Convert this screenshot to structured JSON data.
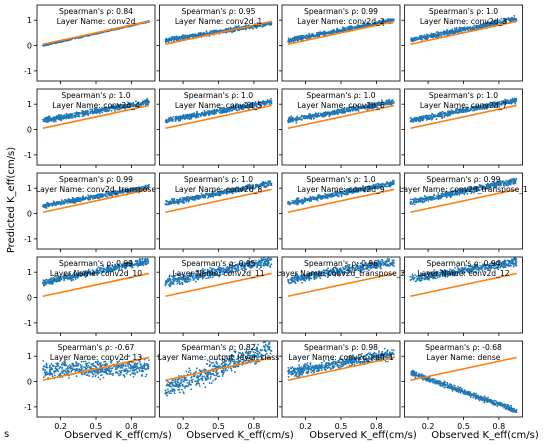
{
  "figure": {
    "ylabel": "Predicted K_eff(cm/s)",
    "xlabel": "Observed K_eff(cm/s)",
    "corner_label": "s",
    "colors": {
      "scatter": "#1f77b4",
      "identity": "#ff7f0e",
      "axes": "#000000"
    }
  },
  "chart_data": [
    {
      "type": "scatter",
      "title": [
        "Spearman's ρ: 0.84",
        "Layer Name: conv2d"
      ],
      "xlim": [
        0,
        1
      ],
      "ylim": [
        -1.4,
        1.6
      ],
      "x_ticks": [
        0.2,
        0.5,
        0.8
      ],
      "y_ticks": [
        -1,
        0,
        1
      ],
      "trend": {
        "x": [
          0.05,
          0.95
        ],
        "y": [
          0.0,
          0.95
        ]
      },
      "spread": 0.02,
      "identity_line": true
    },
    {
      "type": "scatter",
      "title": [
        "Spearman's ρ: 0.95",
        "Layer Name: conv2d_1"
      ],
      "xlim": [
        0,
        1
      ],
      "ylim": [
        -1.4,
        1.6
      ],
      "x_ticks": [
        0.2,
        0.5,
        0.8
      ],
      "y_ticks": [
        -1,
        0,
        1
      ],
      "trend": {
        "x": [
          0.05,
          0.95
        ],
        "y": [
          0.2,
          0.88
        ]
      },
      "spread": 0.07,
      "identity_line": true
    },
    {
      "type": "scatter",
      "title": [
        "Spearman's ρ: 0.99",
        "Layer Name: conv2d_2"
      ],
      "xlim": [
        0,
        1
      ],
      "ylim": [
        -1.4,
        1.6
      ],
      "x_ticks": [
        0.2,
        0.5,
        0.8
      ],
      "y_ticks": [
        -1,
        0,
        1
      ],
      "trend": {
        "x": [
          0.05,
          0.95
        ],
        "y": [
          0.2,
          1.0
        ]
      },
      "spread": 0.07,
      "identity_line": true
    },
    {
      "type": "scatter",
      "title": [
        "Spearman's ρ: 1.0",
        "Layer Name: conv2d_3"
      ],
      "xlim": [
        0,
        1
      ],
      "ylim": [
        -1.4,
        1.6
      ],
      "x_ticks": [
        0.2,
        0.5,
        0.8
      ],
      "y_ticks": [
        -1,
        0,
        1
      ],
      "trend": {
        "x": [
          0.05,
          0.95
        ],
        "y": [
          0.22,
          1.05
        ]
      },
      "spread": 0.08,
      "identity_line": true
    },
    {
      "type": "scatter",
      "title": [
        "Spearman's ρ: 1.0",
        "Layer Name: conv2d_4"
      ],
      "xlim": [
        0,
        1
      ],
      "ylim": [
        -1.4,
        1.6
      ],
      "x_ticks": [
        0.2,
        0.5,
        0.8
      ],
      "y_ticks": [
        -1,
        0,
        1
      ],
      "trend": {
        "x": [
          0.05,
          0.95
        ],
        "y": [
          0.35,
          1.1
        ]
      },
      "spread": 0.08,
      "identity_line": true
    },
    {
      "type": "scatter",
      "title": [
        "Spearman's ρ: 1.0",
        "Layer Name: conv2d_5"
      ],
      "xlim": [
        0,
        1
      ],
      "ylim": [
        -1.4,
        1.6
      ],
      "x_ticks": [
        0.2,
        0.5,
        0.8
      ],
      "y_ticks": [
        -1,
        0,
        1
      ],
      "trend": {
        "x": [
          0.05,
          0.95
        ],
        "y": [
          0.35,
          1.1
        ]
      },
      "spread": 0.08,
      "identity_line": true
    },
    {
      "type": "scatter",
      "title": [
        "Spearman's ρ: 1.0",
        "Layer Name: conv2d_6"
      ],
      "xlim": [
        0,
        1
      ],
      "ylim": [
        -1.4,
        1.6
      ],
      "x_ticks": [
        0.2,
        0.5,
        0.8
      ],
      "y_ticks": [
        -1,
        0,
        1
      ],
      "trend": {
        "x": [
          0.05,
          0.95
        ],
        "y": [
          0.35,
          1.1
        ]
      },
      "spread": 0.08,
      "identity_line": true
    },
    {
      "type": "scatter",
      "title": [
        "Spearman's ρ: 1.0",
        "Layer Name: conv2d_7"
      ],
      "xlim": [
        0,
        1
      ],
      "ylim": [
        -1.4,
        1.6
      ],
      "x_ticks": [
        0.2,
        0.5,
        0.8
      ],
      "y_ticks": [
        -1,
        0,
        1
      ],
      "trend": {
        "x": [
          0.05,
          0.95
        ],
        "y": [
          0.35,
          1.15
        ]
      },
      "spread": 0.08,
      "identity_line": true
    },
    {
      "type": "scatter",
      "title": [
        "Spearman's ρ: 0.99",
        "Layer Name: conv2d_transpose"
      ],
      "xlim": [
        0,
        1
      ],
      "ylim": [
        -1.4,
        1.6
      ],
      "x_ticks": [
        0.2,
        0.5,
        0.8
      ],
      "y_ticks": [
        -1,
        0,
        1
      ],
      "trend": {
        "x": [
          0.05,
          0.95
        ],
        "y": [
          0.3,
          1.05
        ]
      },
      "spread": 0.07,
      "identity_line": true
    },
    {
      "type": "scatter",
      "title": [
        "Spearman's ρ: 1.0",
        "Layer Name: conv2d_8"
      ],
      "xlim": [
        0,
        1
      ],
      "ylim": [
        -1.4,
        1.6
      ],
      "x_ticks": [
        0.2,
        0.5,
        0.8
      ],
      "y_ticks": [
        -1,
        0,
        1
      ],
      "trend": {
        "x": [
          0.05,
          0.95
        ],
        "y": [
          0.4,
          1.2
        ]
      },
      "spread": 0.08,
      "identity_line": true
    },
    {
      "type": "scatter",
      "title": [
        "Spearman's ρ: 1.0",
        "Layer Name: conv2d_9"
      ],
      "xlim": [
        0,
        1
      ],
      "ylim": [
        -1.4,
        1.6
      ],
      "x_ticks": [
        0.2,
        0.5,
        0.8
      ],
      "y_ticks": [
        -1,
        0,
        1
      ],
      "trend": {
        "x": [
          0.05,
          0.95
        ],
        "y": [
          0.4,
          1.2
        ]
      },
      "spread": 0.08,
      "identity_line": true
    },
    {
      "type": "scatter",
      "title": [
        "Spearman's ρ: 0.99",
        "Layer Name: conv2d_transpose_1"
      ],
      "xlim": [
        0,
        1
      ],
      "ylim": [
        -1.4,
        1.6
      ],
      "x_ticks": [
        0.2,
        0.5,
        0.8
      ],
      "y_ticks": [
        -1,
        0,
        1
      ],
      "trend": {
        "x": [
          0.05,
          0.95
        ],
        "y": [
          0.45,
          1.3
        ]
      },
      "spread": 0.09,
      "identity_line": true
    },
    {
      "type": "scatter",
      "title": [
        "Spearman's ρ: 0.99",
        "Layer Name: conv2d_10"
      ],
      "xlim": [
        0,
        1
      ],
      "ylim": [
        -1.4,
        1.6
      ],
      "x_ticks": [
        0.2,
        0.5,
        0.8
      ],
      "y_ticks": [
        -1,
        0,
        1
      ],
      "trend": {
        "x": [
          0.05,
          0.95
        ],
        "y": [
          0.6,
          1.45
        ]
      },
      "spread": 0.1,
      "identity_line": true
    },
    {
      "type": "scatter",
      "title": [
        "Spearman's ρ: 0.95",
        "Layer Name: conv2d_11"
      ],
      "xlim": [
        0,
        1
      ],
      "ylim": [
        -1.4,
        1.6
      ],
      "x_ticks": [
        0.2,
        0.5,
        0.8
      ],
      "y_ticks": [
        -1,
        0,
        1
      ],
      "trend": {
        "x": [
          0.05,
          0.95
        ],
        "y": [
          0.6,
          1.45
        ]
      },
      "spread": 0.15,
      "identity_line": true
    },
    {
      "type": "scatter",
      "title": [
        "Spearman's ρ: 0.96",
        "Layer Name: conv2d_transpose_2"
      ],
      "xlim": [
        0,
        1
      ],
      "ylim": [
        -1.4,
        1.6
      ],
      "x_ticks": [
        0.2,
        0.5,
        0.8
      ],
      "y_ticks": [
        -1,
        0,
        1
      ],
      "trend": {
        "x": [
          0.05,
          0.95
        ],
        "y": [
          0.7,
          1.4
        ]
      },
      "spread": 0.12,
      "identity_line": true
    },
    {
      "type": "scatter",
      "title": [
        "Spearman's ρ: 0.94",
        "Layer Name: conv2d_12"
      ],
      "xlim": [
        0,
        1
      ],
      "ylim": [
        -1.4,
        1.6
      ],
      "x_ticks": [
        0.2,
        0.5,
        0.8
      ],
      "y_ticks": [
        -1,
        0,
        1
      ],
      "trend": {
        "x": [
          0.05,
          0.95
        ],
        "y": [
          0.75,
          1.4
        ]
      },
      "spread": 0.12,
      "identity_line": true
    },
    {
      "type": "scatter",
      "title": [
        "Spearman's ρ: -0.67",
        "Layer Name: conv2d_13"
      ],
      "xlim": [
        0,
        1
      ],
      "ylim": [
        -1.4,
        1.6
      ],
      "x_ticks": [
        0.2,
        0.5,
        0.8
      ],
      "y_ticks": [
        -1,
        0,
        1
      ],
      "trend": {
        "x": [
          0.05,
          0.95
        ],
        "y": [
          0.45,
          0.55
        ]
      },
      "spread": 0.25,
      "identity_line": true
    },
    {
      "type": "scatter",
      "title": [
        "Spearman's ρ: 0.82",
        "Layer Name: output_layer_class"
      ],
      "xlim": [
        0,
        1
      ],
      "ylim": [
        -1.4,
        1.6
      ],
      "x_ticks": [
        0.2,
        0.5,
        0.8
      ],
      "y_ticks": [
        -1,
        0,
        1
      ],
      "trend": {
        "x": [
          0.05,
          0.95
        ],
        "y": [
          -0.3,
          1.3
        ]
      },
      "spread": 0.3,
      "identity_line": true
    },
    {
      "type": "scatter",
      "title": [
        "Spearman's ρ: 0.98",
        "Layer Name: conv2d_keff_1"
      ],
      "xlim": [
        0,
        1
      ],
      "ylim": [
        -1.4,
        1.6
      ],
      "x_ticks": [
        0.2,
        0.5,
        0.8
      ],
      "y_ticks": [
        -1,
        0,
        1
      ],
      "trend": {
        "x": [
          0.05,
          0.95
        ],
        "y": [
          0.35,
          1.1
        ]
      },
      "spread": 0.15,
      "identity_line": true
    },
    {
      "type": "scatter",
      "title": [
        "Spearman's ρ: -0.68",
        "Layer Name: dense"
      ],
      "xlim": [
        0,
        1
      ],
      "ylim": [
        -1.4,
        1.6
      ],
      "x_ticks": [
        0.2,
        0.5,
        0.8
      ],
      "y_ticks": [
        -1,
        0,
        1
      ],
      "trend": {
        "x": [
          0.05,
          0.95
        ],
        "y": [
          0.35,
          -1.15
        ]
      },
      "spread": 0.08,
      "identity_line": true
    }
  ]
}
